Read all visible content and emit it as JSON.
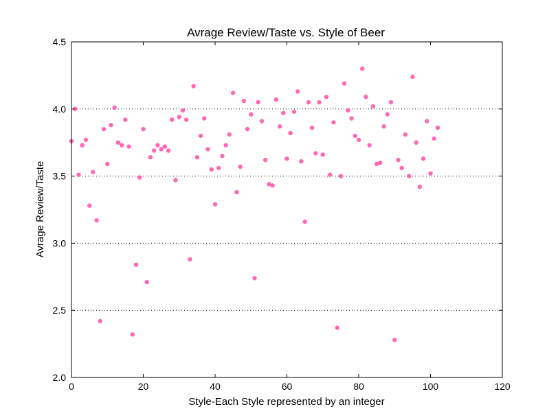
{
  "chart_data": {
    "type": "scatter",
    "title": "Avrage Review/Taste vs. Style of Beer",
    "xlabel": "Style-Each Style represented by an integer",
    "ylabel": "Avrage Review/Taste",
    "xlim": [
      0,
      120
    ],
    "ylim": [
      2.0,
      4.5
    ],
    "xticks": [
      0,
      20,
      40,
      60,
      80,
      100,
      120
    ],
    "yticks": [
      2.0,
      2.5,
      3.0,
      3.5,
      4.0,
      4.5
    ],
    "xtick_labels": [
      "0",
      "20",
      "40",
      "60",
      "80",
      "100",
      "120"
    ],
    "ytick_labels": [
      "2.0",
      "2.5",
      "3.0",
      "3.5",
      "4.0",
      "4.5"
    ],
    "grid": "y-dotted",
    "marker_color": "#ff69b4",
    "series": [
      {
        "points": [
          [
            0,
            3.76
          ],
          [
            1,
            4.0
          ],
          [
            2,
            3.51
          ],
          [
            3,
            3.73
          ],
          [
            4,
            3.77
          ],
          [
            5,
            3.28
          ],
          [
            6,
            3.53
          ],
          [
            7,
            3.17
          ],
          [
            8,
            2.42
          ],
          [
            9,
            3.85
          ],
          [
            10,
            3.59
          ],
          [
            11,
            3.88
          ],
          [
            12,
            4.01
          ],
          [
            13,
            3.75
          ],
          [
            14,
            3.73
          ],
          [
            15,
            3.92
          ],
          [
            16,
            3.72
          ],
          [
            17,
            2.32
          ],
          [
            18,
            2.84
          ],
          [
            19,
            3.49
          ],
          [
            20,
            3.85
          ],
          [
            21,
            2.71
          ],
          [
            22,
            3.64
          ],
          [
            23,
            3.69
          ],
          [
            24,
            3.73
          ],
          [
            25,
            3.7
          ],
          [
            26,
            3.72
          ],
          [
            27,
            3.69
          ],
          [
            28,
            3.92
          ],
          [
            29,
            3.47
          ],
          [
            30,
            3.94
          ],
          [
            31,
            3.99
          ],
          [
            32,
            3.92
          ],
          [
            33,
            2.88
          ],
          [
            34,
            4.17
          ],
          [
            35,
            3.64
          ],
          [
            36,
            3.8
          ],
          [
            37,
            3.93
          ],
          [
            38,
            3.7
          ],
          [
            39,
            3.55
          ],
          [
            40,
            3.29
          ],
          [
            41,
            3.56
          ],
          [
            42,
            3.65
          ],
          [
            43,
            3.73
          ],
          [
            44,
            3.81
          ],
          [
            45,
            4.12
          ],
          [
            46,
            3.38
          ],
          [
            47,
            3.57
          ],
          [
            48,
            4.06
          ],
          [
            49,
            3.85
          ],
          [
            50,
            3.96
          ],
          [
            51,
            2.74
          ],
          [
            52,
            4.05
          ],
          [
            53,
            3.91
          ],
          [
            54,
            3.62
          ],
          [
            55,
            3.44
          ],
          [
            56,
            3.43
          ],
          [
            57,
            4.07
          ],
          [
            58,
            3.87
          ],
          [
            59,
            3.97
          ],
          [
            60,
            3.63
          ],
          [
            61,
            3.82
          ],
          [
            62,
            3.98
          ],
          [
            63,
            4.13
          ],
          [
            64,
            3.61
          ],
          [
            65,
            3.16
          ],
          [
            66,
            4.05
          ],
          [
            67,
            3.86
          ],
          [
            68,
            3.67
          ],
          [
            69,
            4.05
          ],
          [
            70,
            3.66
          ],
          [
            71,
            4.09
          ],
          [
            72,
            3.51
          ],
          [
            73,
            3.9
          ],
          [
            74,
            2.37
          ],
          [
            75,
            3.5
          ],
          [
            76,
            4.19
          ],
          [
            77,
            3.99
          ],
          [
            78,
            3.93
          ],
          [
            79,
            3.8
          ],
          [
            80,
            3.77
          ],
          [
            81,
            4.3
          ],
          [
            82,
            4.09
          ],
          [
            83,
            3.73
          ],
          [
            84,
            4.02
          ],
          [
            85,
            3.59
          ],
          [
            86,
            3.6
          ],
          [
            87,
            3.87
          ],
          [
            88,
            3.96
          ],
          [
            89,
            4.05
          ],
          [
            90,
            2.28
          ],
          [
            91,
            3.62
          ],
          [
            92,
            3.56
          ],
          [
            93,
            3.81
          ],
          [
            94,
            3.5
          ],
          [
            95,
            4.24
          ],
          [
            96,
            3.75
          ],
          [
            97,
            3.42
          ],
          [
            98,
            3.63
          ],
          [
            99,
            3.91
          ],
          [
            100,
            3.52
          ],
          [
            101,
            3.78
          ],
          [
            102,
            3.86
          ]
        ]
      }
    ]
  }
}
